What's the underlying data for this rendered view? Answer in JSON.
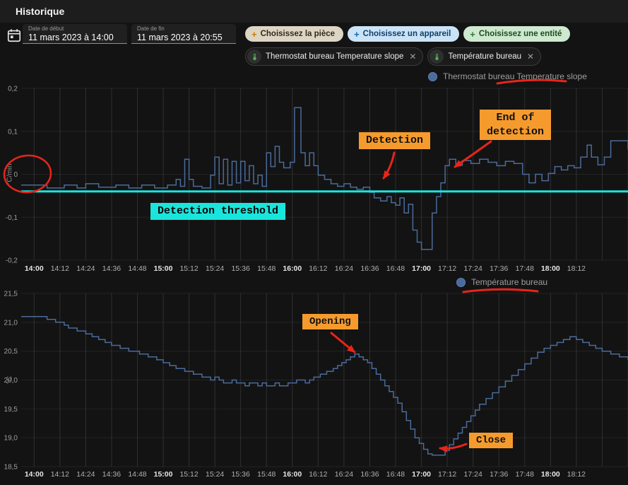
{
  "app": {
    "title": "Historique"
  },
  "colors": {
    "page_bg": "#131313",
    "header_bg": "#1d1d1d",
    "series_blue": "#4a6b9b",
    "threshold_cyan": "#1ae5dc",
    "annotation_orange": "#f59b2e",
    "annotation_cyan": "#1ae5dc",
    "annotation_red": "#e8251a"
  },
  "toolbar": {
    "start": {
      "label": "Date de début",
      "value": "11 mars 2023 à 14:00"
    },
    "end": {
      "label": "Date de fin",
      "value": "11 mars 2023 à 20:55"
    },
    "filter_chips": [
      {
        "label": "Choisissez la pièce",
        "plus_glyph": "+",
        "bg": "#ddd5c4",
        "fg": "#33291a",
        "plus": "#cf7d00"
      },
      {
        "label": "Choisissez un appareil",
        "plus_glyph": "+",
        "bg": "#cbe3f7",
        "fg": "#123f66",
        "plus": "#1769aa"
      },
      {
        "label": "Choisissez une entité",
        "plus_glyph": "+",
        "bg": "#cee9cf",
        "fg": "#1c4b21",
        "plus": "#2e7d32"
      }
    ],
    "entity_chips": [
      {
        "label": "Thermostat bureau Temperature slope",
        "close_glyph": "✕"
      },
      {
        "label": "Température bureau",
        "close_glyph": "✕"
      }
    ]
  },
  "annotations": {
    "detection": {
      "text": "Detection"
    },
    "end_of_detection": {
      "line1": "End of",
      "line2": "detection"
    },
    "threshold": {
      "text": "Detection threshold"
    },
    "opening": {
      "text": "Opening"
    },
    "close": {
      "text": "Close"
    }
  },
  "chart_data": [
    {
      "type": "line",
      "legend": "Thermostat bureau Temperature slope",
      "ylabel": "°C/min",
      "ylim": [
        -0.2,
        0.2
      ],
      "xlim": [
        -6,
        276
      ],
      "grid": true,
      "legend_position": "top-right",
      "yticks": [
        {
          "v": 0.2,
          "label": "0,2"
        },
        {
          "v": 0.1,
          "label": "0,1"
        },
        {
          "v": 0,
          "label": "0"
        },
        {
          "v": -0.1,
          "label": "-0,1"
        },
        {
          "v": -0.2,
          "label": "-0,2"
        }
      ],
      "xticks": [
        {
          "t": 0,
          "label": "14:00",
          "bold": true
        },
        {
          "t": 12,
          "label": "14:12"
        },
        {
          "t": 24,
          "label": "14:24"
        },
        {
          "t": 36,
          "label": "14:36"
        },
        {
          "t": 48,
          "label": "14:48"
        },
        {
          "t": 60,
          "label": "15:00",
          "bold": true
        },
        {
          "t": 72,
          "label": "15:12"
        },
        {
          "t": 84,
          "label": "15:24"
        },
        {
          "t": 96,
          "label": "15:36"
        },
        {
          "t": 108,
          "label": "15:48"
        },
        {
          "t": 120,
          "label": "16:00",
          "bold": true
        },
        {
          "t": 132,
          "label": "16:12"
        },
        {
          "t": 144,
          "label": "16:24"
        },
        {
          "t": 156,
          "label": "16:36"
        },
        {
          "t": 168,
          "label": "16:48"
        },
        {
          "t": 180,
          "label": "17:00",
          "bold": true
        },
        {
          "t": 192,
          "label": "17:12"
        },
        {
          "t": 204,
          "label": "17:24"
        },
        {
          "t": 216,
          "label": "17:36"
        },
        {
          "t": 228,
          "label": "17:48"
        },
        {
          "t": 240,
          "label": "18:00",
          "bold": true
        },
        {
          "t": 252,
          "label": "18:12"
        },
        {
          "t": 264,
          "label": ""
        },
        {
          "t": 276,
          "label": ""
        }
      ],
      "threshold": {
        "value": -0.04,
        "color": "#1ae5dc",
        "label": "Detection threshold"
      },
      "series": [
        {
          "name": "Thermostat bureau Temperature slope",
          "color": "#4a6b9b",
          "step": true,
          "points": [
            [
              -6,
              -0.025
            ],
            [
              4,
              -0.025
            ],
            [
              6,
              -0.032
            ],
            [
              14,
              -0.025
            ],
            [
              20,
              -0.032
            ],
            [
              24,
              -0.022
            ],
            [
              30,
              -0.03
            ],
            [
              38,
              -0.025
            ],
            [
              44,
              -0.032
            ],
            [
              50,
              -0.025
            ],
            [
              56,
              -0.032
            ],
            [
              62,
              -0.025
            ],
            [
              66,
              -0.012
            ],
            [
              68,
              -0.028
            ],
            [
              70,
              0.035
            ],
            [
              72,
              -0.012
            ],
            [
              74,
              -0.028
            ],
            [
              78,
              -0.032
            ],
            [
              82,
              -0.002
            ],
            [
              84,
              0.04
            ],
            [
              86,
              -0.022
            ],
            [
              88,
              0.035
            ],
            [
              90,
              -0.025
            ],
            [
              92,
              0.03
            ],
            [
              94,
              -0.02
            ],
            [
              96,
              0.03
            ],
            [
              98,
              -0.015
            ],
            [
              100,
              0.02
            ],
            [
              102,
              -0.022
            ],
            [
              104,
              -0.002
            ],
            [
              106,
              -0.028
            ],
            [
              108,
              0.05
            ],
            [
              110,
              0.018
            ],
            [
              112,
              0.065
            ],
            [
              114,
              0.028
            ],
            [
              116,
              0.015
            ],
            [
              119,
              0.028
            ],
            [
              121,
              0.155
            ],
            [
              124,
              0.05
            ],
            [
              126,
              0.02
            ],
            [
              128,
              0.05
            ],
            [
              130,
              0.02
            ],
            [
              132,
              -0.002
            ],
            [
              135,
              -0.012
            ],
            [
              138,
              -0.022
            ],
            [
              141,
              -0.028
            ],
            [
              144,
              -0.022
            ],
            [
              147,
              -0.03
            ],
            [
              150,
              -0.035
            ],
            [
              153,
              -0.03
            ],
            [
              156,
              -0.042
            ],
            [
              158,
              -0.055
            ],
            [
              161,
              -0.062
            ],
            [
              164,
              -0.052
            ],
            [
              166,
              -0.066
            ],
            [
              168,
              -0.072
            ],
            [
              170,
              -0.055
            ],
            [
              172,
              -0.09
            ],
            [
              174,
              -0.07
            ],
            [
              176,
              -0.13
            ],
            [
              178,
              -0.158
            ],
            [
              180,
              -0.175
            ],
            [
              184,
              -0.175
            ],
            [
              185,
              -0.09
            ],
            [
              187,
              -0.052
            ],
            [
              189,
              -0.02
            ],
            [
              191,
              0.02
            ],
            [
              193,
              0.035
            ],
            [
              196,
              0.022
            ],
            [
              199,
              0.032
            ],
            [
              203,
              0.025
            ],
            [
              207,
              0.035
            ],
            [
              211,
              0.028
            ],
            [
              215,
              0.02
            ],
            [
              219,
              0.03
            ],
            [
              223,
              0.025
            ],
            [
              227,
              0.0
            ],
            [
              230,
              -0.02
            ],
            [
              233,
              0.0
            ],
            [
              236,
              -0.015
            ],
            [
              239,
              0.002
            ],
            [
              242,
              0.018
            ],
            [
              245,
              0.01
            ],
            [
              248,
              0.02
            ],
            [
              251,
              0.015
            ],
            [
              254,
              0.04
            ],
            [
              257,
              0.068
            ],
            [
              259,
              0.04
            ],
            [
              262,
              0.022
            ],
            [
              265,
              0.04
            ],
            [
              268,
              0.078
            ],
            [
              276,
              0.058
            ]
          ]
        }
      ]
    },
    {
      "type": "line",
      "legend": "Température bureau",
      "ylabel": "°C",
      "ylim": [
        18.5,
        21.5
      ],
      "xlim": [
        -6,
        276
      ],
      "grid": true,
      "legend_position": "top-right",
      "yticks": [
        {
          "v": 21.5,
          "label": "21,5"
        },
        {
          "v": 21.0,
          "label": "21,0"
        },
        {
          "v": 20.5,
          "label": "20,5"
        },
        {
          "v": 20.0,
          "label": "20,0"
        },
        {
          "v": 19.5,
          "label": "19,5"
        },
        {
          "v": 19.0,
          "label": "19,0"
        },
        {
          "v": 18.5,
          "label": "18,5"
        }
      ],
      "xticks": [
        {
          "t": 0,
          "label": "14:00",
          "bold": true
        },
        {
          "t": 12,
          "label": "14:12"
        },
        {
          "t": 24,
          "label": "14:24"
        },
        {
          "t": 36,
          "label": "14:36"
        },
        {
          "t": 48,
          "label": "14:48"
        },
        {
          "t": 60,
          "label": "15:00",
          "bold": true
        },
        {
          "t": 72,
          "label": "15:12"
        },
        {
          "t": 84,
          "label": "15:24"
        },
        {
          "t": 96,
          "label": "15:36"
        },
        {
          "t": 108,
          "label": "15:48"
        },
        {
          "t": 120,
          "label": "16:00",
          "bold": true
        },
        {
          "t": 132,
          "label": "16:12"
        },
        {
          "t": 144,
          "label": "16:24"
        },
        {
          "t": 156,
          "label": "16:36"
        },
        {
          "t": 168,
          "label": "16:48"
        },
        {
          "t": 180,
          "label": "17:00",
          "bold": true
        },
        {
          "t": 192,
          "label": "17:12"
        },
        {
          "t": 204,
          "label": "17:24"
        },
        {
          "t": 216,
          "label": "17:36"
        },
        {
          "t": 228,
          "label": "17:48"
        },
        {
          "t": 240,
          "label": "18:00",
          "bold": true
        },
        {
          "t": 252,
          "label": "18:12"
        },
        {
          "t": 264,
          "label": ""
        },
        {
          "t": 276,
          "label": ""
        }
      ],
      "series": [
        {
          "name": "Température bureau",
          "color": "#4a6b9b",
          "step": true,
          "points": [
            [
              -6,
              21.1
            ],
            [
              4,
              21.1
            ],
            [
              6,
              21.05
            ],
            [
              10,
              21.0
            ],
            [
              14,
              20.95
            ],
            [
              16,
              20.9
            ],
            [
              20,
              20.85
            ],
            [
              24,
              20.8
            ],
            [
              27,
              20.75
            ],
            [
              30,
              20.7
            ],
            [
              33,
              20.65
            ],
            [
              36,
              20.6
            ],
            [
              40,
              20.55
            ],
            [
              44,
              20.5
            ],
            [
              49,
              20.45
            ],
            [
              53,
              20.4
            ],
            [
              57,
              20.35
            ],
            [
              60,
              20.3
            ],
            [
              63,
              20.25
            ],
            [
              66,
              20.2
            ],
            [
              70,
              20.15
            ],
            [
              74,
              20.1
            ],
            [
              78,
              20.05
            ],
            [
              82,
              20.0
            ],
            [
              84,
              20.05
            ],
            [
              86,
              20.0
            ],
            [
              88,
              19.95
            ],
            [
              92,
              20.0
            ],
            [
              94,
              19.95
            ],
            [
              98,
              19.9
            ],
            [
              100,
              19.95
            ],
            [
              104,
              19.9
            ],
            [
              106,
              19.95
            ],
            [
              108,
              19.9
            ],
            [
              112,
              19.95
            ],
            [
              114,
              19.9
            ],
            [
              118,
              19.95
            ],
            [
              122,
              20.0
            ],
            [
              126,
              19.95
            ],
            [
              128,
              20.0
            ],
            [
              130,
              20.05
            ],
            [
              133,
              20.1
            ],
            [
              136,
              20.15
            ],
            [
              139,
              20.2
            ],
            [
              141,
              20.25
            ],
            [
              143,
              20.3
            ],
            [
              145,
              20.35
            ],
            [
              147,
              20.4
            ],
            [
              149,
              20.45
            ],
            [
              151,
              20.4
            ],
            [
              153,
              20.35
            ],
            [
              155,
              20.3
            ],
            [
              157,
              20.2
            ],
            [
              159,
              20.1
            ],
            [
              161,
              20.0
            ],
            [
              163,
              19.9
            ],
            [
              165,
              19.8
            ],
            [
              167,
              19.7
            ],
            [
              169,
              19.6
            ],
            [
              171,
              19.45
            ],
            [
              173,
              19.3
            ],
            [
              175,
              19.15
            ],
            [
              177,
              19.0
            ],
            [
              179,
              18.9
            ],
            [
              181,
              18.8
            ],
            [
              183,
              18.72
            ],
            [
              185,
              18.7
            ],
            [
              190,
              18.7
            ],
            [
              191,
              18.78
            ],
            [
              193,
              18.88
            ],
            [
              195,
              18.98
            ],
            [
              197,
              19.08
            ],
            [
              199,
              19.18
            ],
            [
              201,
              19.28
            ],
            [
              203,
              19.38
            ],
            [
              205,
              19.48
            ],
            [
              207,
              19.58
            ],
            [
              210,
              19.68
            ],
            [
              213,
              19.78
            ],
            [
              216,
              19.88
            ],
            [
              219,
              19.98
            ],
            [
              222,
              20.08
            ],
            [
              225,
              20.18
            ],
            [
              228,
              20.28
            ],
            [
              231,
              20.38
            ],
            [
              234,
              20.48
            ],
            [
              237,
              20.55
            ],
            [
              240,
              20.6
            ],
            [
              243,
              20.65
            ],
            [
              246,
              20.7
            ],
            [
              249,
              20.75
            ],
            [
              252,
              20.7
            ],
            [
              255,
              20.65
            ],
            [
              258,
              20.6
            ],
            [
              261,
              20.55
            ],
            [
              264,
              20.5
            ],
            [
              268,
              20.45
            ],
            [
              272,
              20.4
            ],
            [
              276,
              20.35
            ]
          ]
        }
      ]
    }
  ]
}
